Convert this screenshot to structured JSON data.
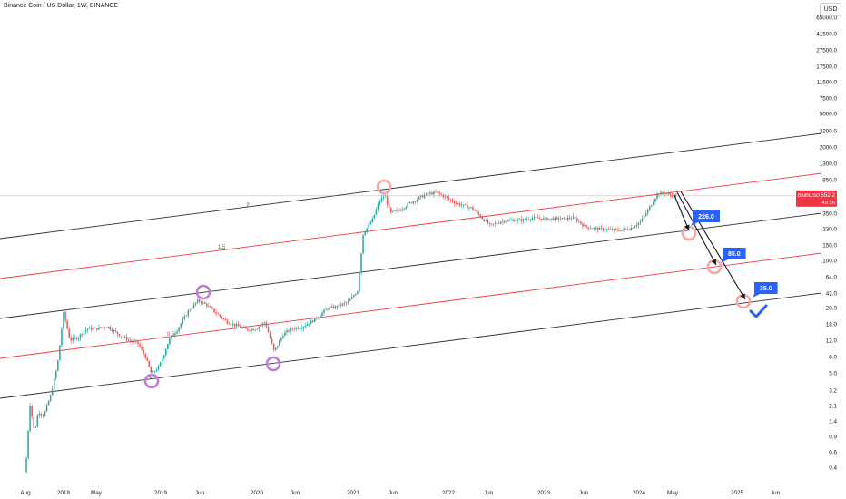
{
  "header": {
    "title": "Binance Coin / US Dollar, 1W, BINANCE",
    "currency_button": "USD"
  },
  "price_tag": {
    "symbol": "BNBUSD",
    "price": "552.2",
    "countdown": "4d 5h",
    "color": "#f23645"
  },
  "colors": {
    "up_candle": "#26a69a",
    "down_candle": "#ef5350",
    "black_channel": "#2a2e39",
    "red_channel": "#f23645",
    "projection_circle": "#f7a6a6",
    "touch_circle": "#c37ad9",
    "target_label": "#2962ff",
    "check_mark": "#2962ff"
  },
  "chart_data": {
    "type": "candlestick",
    "scale": "log",
    "y_ticks": [
      "0.4",
      "0.6",
      "0.9",
      "1.4",
      "2.1",
      "3.2",
      "5.0",
      "8.0",
      "12.0",
      "18.0",
      "28.0",
      "42.0",
      "64.0",
      "100.0",
      "150.0",
      "230.0",
      "350.0",
      "550.0",
      "850.0",
      "1300.0",
      "2000.0",
      "3200.0",
      "5000.0",
      "7500.0",
      "11500.0",
      "17500.0",
      "27500.0",
      "41500.0",
      "65000.0"
    ],
    "x_ticks": [
      "Aug",
      "2018",
      "May",
      "2019",
      "Jun",
      "2020",
      "Jun",
      "2021",
      "Jun",
      "2022",
      "Jun",
      "2023",
      "Jun",
      "2024",
      "May",
      "2025",
      "Jun"
    ],
    "channel_lines": [
      {
        "color": "black",
        "label": "2"
      },
      {
        "color": "red",
        "label": "1.5"
      },
      {
        "color": "black",
        "label": ""
      },
      {
        "color": "red",
        "label": "0.5"
      },
      {
        "color": "black",
        "label": "0"
      }
    ],
    "targets": [
      "226.0",
      "85.0",
      "35.0"
    ],
    "last_price": 552.2
  }
}
